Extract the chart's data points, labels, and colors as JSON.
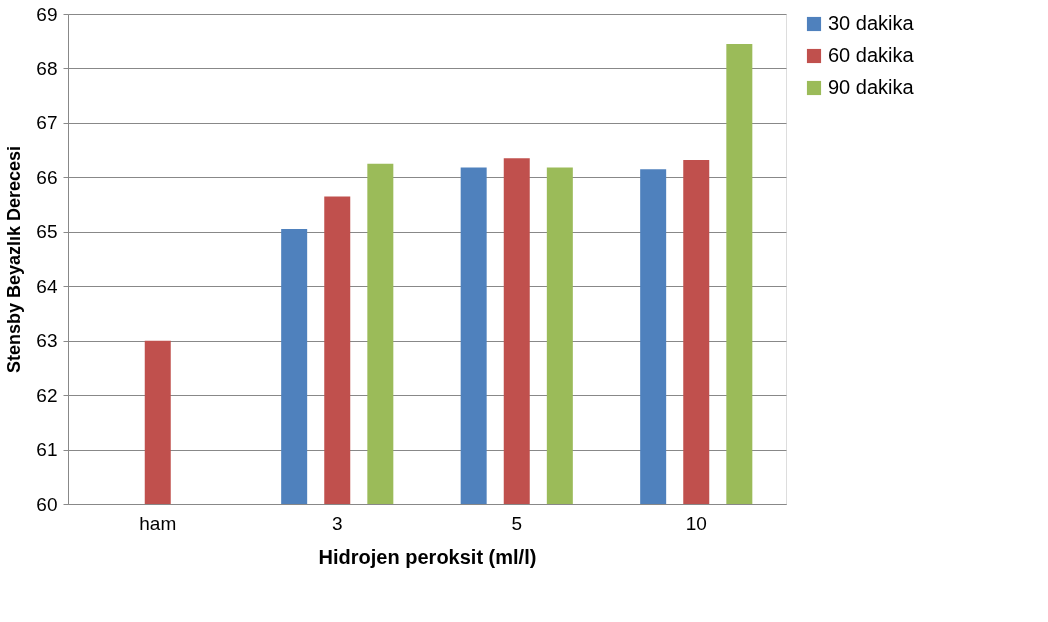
{
  "chart_data": {
    "type": "bar",
    "xlabel": "Hidrojen peroksit (ml/l)",
    "ylabel": "Stensby Beyazlık Derecesi",
    "categories": [
      "ham",
      "3",
      "5",
      "10"
    ],
    "series": [
      {
        "name": "30 dakika",
        "color": "#4f81bd",
        "values": [
          null,
          65.05,
          66.18,
          66.15
        ]
      },
      {
        "name": "60 dakika",
        "color": "#c0504d",
        "values": [
          63.0,
          65.65,
          66.35,
          66.32
        ]
      },
      {
        "name": "90 dakika",
        "color": "#9bbb59",
        "values": [
          null,
          66.25,
          66.18,
          68.45
        ]
      }
    ],
    "ylim": [
      60,
      69
    ],
    "yticks": [
      60,
      61,
      62,
      63,
      64,
      65,
      66,
      67,
      68,
      69
    ],
    "grid": "y",
    "legend": "right"
  }
}
